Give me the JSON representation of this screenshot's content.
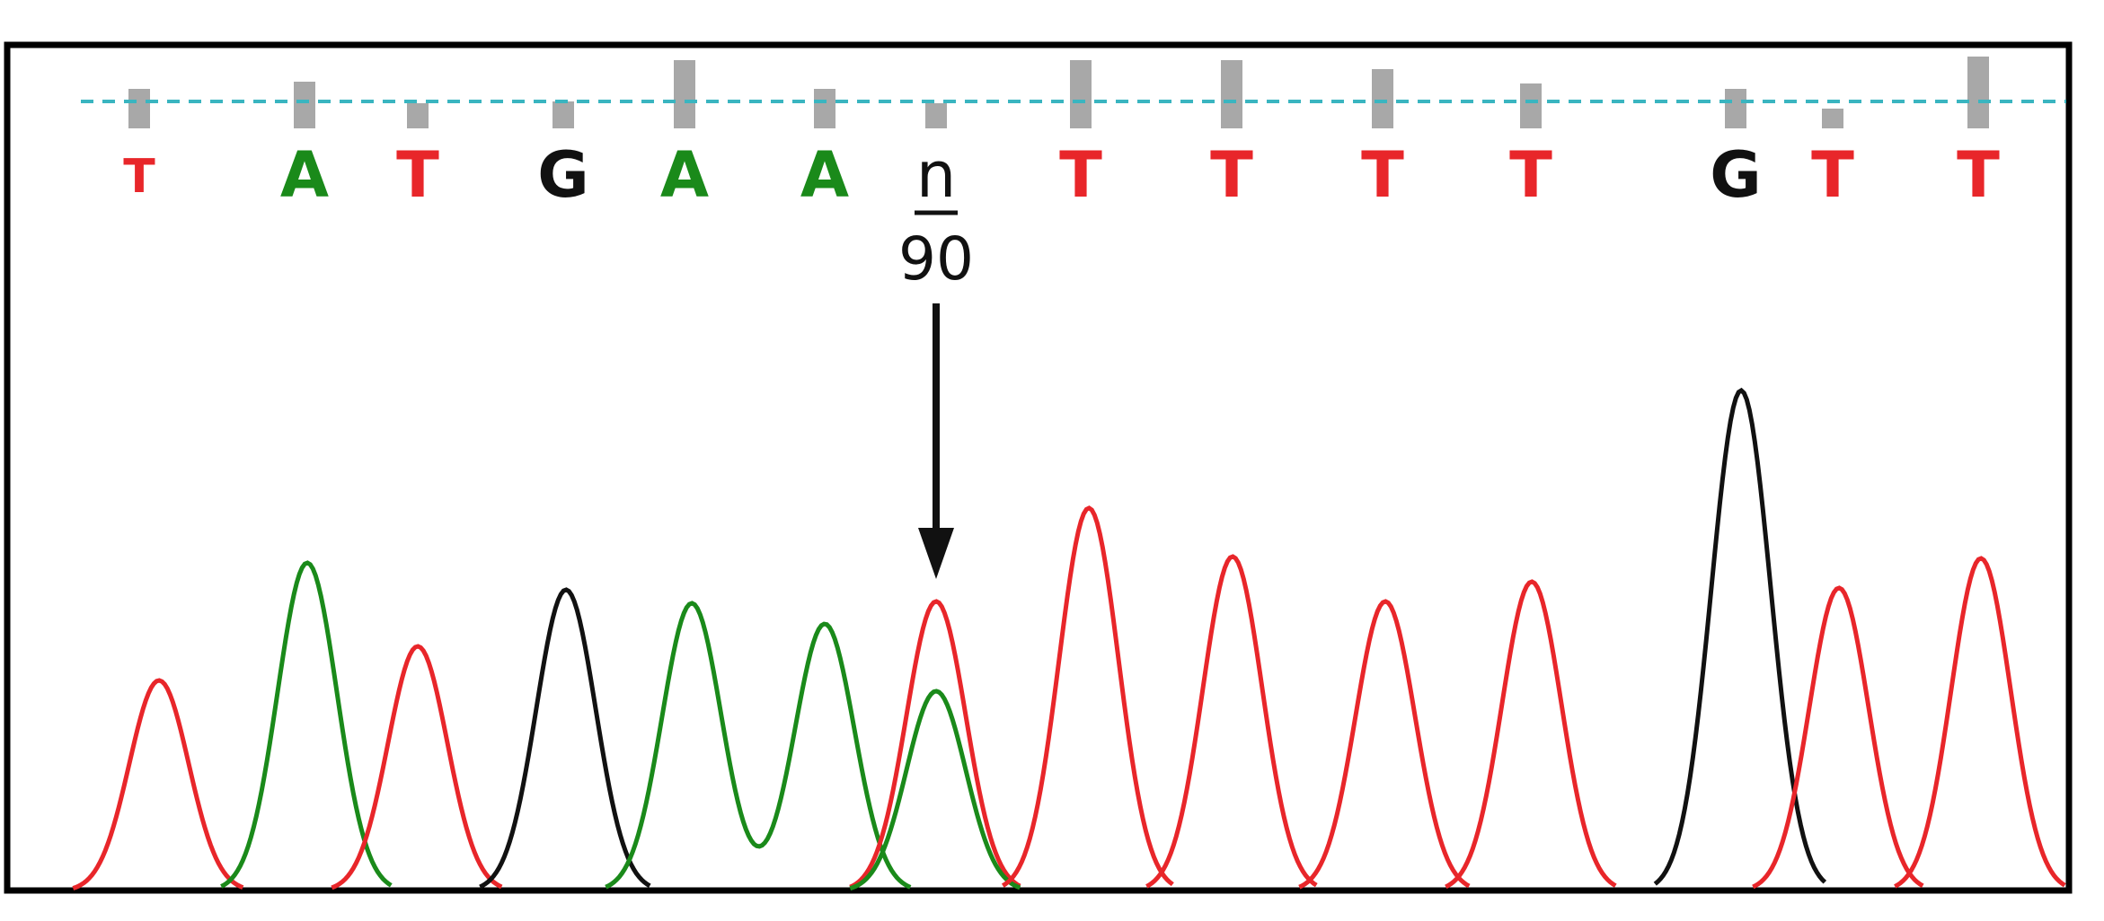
{
  "bases": [
    "T",
    "A",
    "T",
    "G",
    "A",
    "A",
    "n",
    "T",
    "T",
    "T",
    "T",
    "G",
    "T",
    "T"
  ],
  "position": "90"
}
